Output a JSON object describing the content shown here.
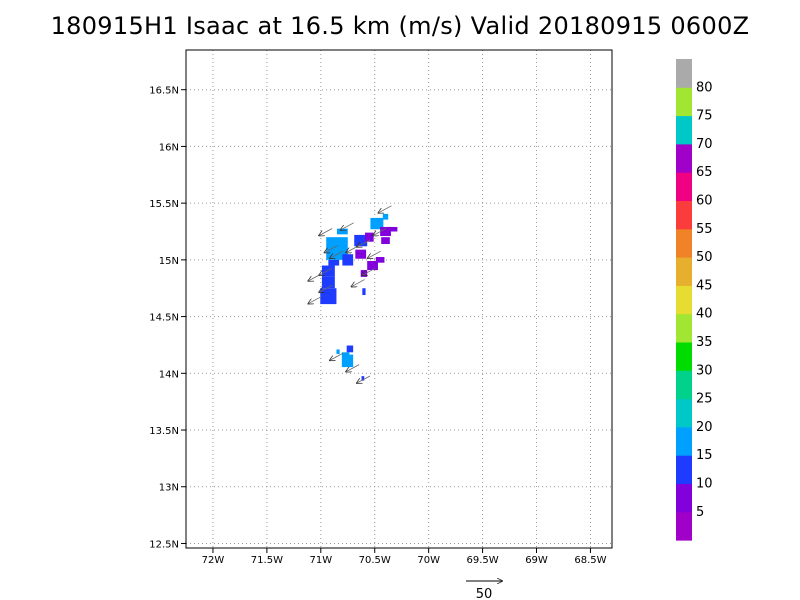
{
  "title": "180915H1 Isaac at 16.5 km (m/s) Valid 20180915 0600Z",
  "chart_data": {
    "type": "heatmap",
    "title": "180915H1 Isaac at 16.5 km (m/s) Valid 20180915 0600Z",
    "xlabel": "",
    "ylabel": "",
    "xlim": [
      -72.25,
      -68.3
    ],
    "ylim": [
      12.46,
      16.85
    ],
    "grid": true,
    "x_ticks": [
      {
        "value": -72,
        "label": "72W"
      },
      {
        "value": -71.5,
        "label": "71.5W"
      },
      {
        "value": -71,
        "label": "71W"
      },
      {
        "value": -70.5,
        "label": "70.5W"
      },
      {
        "value": -70,
        "label": "70W"
      },
      {
        "value": -69.5,
        "label": "69.5W"
      },
      {
        "value": -69,
        "label": "69W"
      },
      {
        "value": -68.5,
        "label": "68.5W"
      }
    ],
    "y_ticks": [
      {
        "value": 12.5,
        "label": "12.5N"
      },
      {
        "value": 13,
        "label": "13N"
      },
      {
        "value": 13.5,
        "label": "13.5N"
      },
      {
        "value": 14,
        "label": "14N"
      },
      {
        "value": 14.5,
        "label": "14.5N"
      },
      {
        "value": 15,
        "label": "15N"
      },
      {
        "value": 15.5,
        "label": "15.5N"
      },
      {
        "value": 16,
        "label": "16N"
      },
      {
        "value": 16.5,
        "label": "16.5N"
      }
    ],
    "colorbar": {
      "labels": [
        "5",
        "10",
        "15",
        "20",
        "25",
        "30",
        "35",
        "40",
        "45",
        "50",
        "55",
        "60",
        "65",
        "70",
        "75",
        "80"
      ],
      "colors": [
        "#a000c8",
        "#8200dc",
        "#1e3cff",
        "#00a0ff",
        "#00c8c8",
        "#00d28c",
        "#00dc00",
        "#a0e632",
        "#e6dc32",
        "#e6af2d",
        "#f08228",
        "#fa3c3c",
        "#f00082",
        "#a000c8",
        "#00c8c8",
        "#a0e632",
        "#aaaaaa"
      ]
    },
    "cells": [
      {
        "lon": -70.8,
        "lat": 15.25,
        "w": 0.1,
        "h": 0.05,
        "v": 18
      },
      {
        "lon": -70.85,
        "lat": 15.15,
        "w": 0.2,
        "h": 0.1,
        "v": 18
      },
      {
        "lon": -70.85,
        "lat": 15.05,
        "w": 0.2,
        "h": 0.1,
        "v": 18
      },
      {
        "lon": -70.88,
        "lat": 14.975,
        "w": 0.1,
        "h": 0.05,
        "v": 14
      },
      {
        "lon": -70.93,
        "lat": 14.9,
        "w": 0.12,
        "h": 0.1,
        "v": 14
      },
      {
        "lon": -70.93,
        "lat": 14.8,
        "w": 0.12,
        "h": 0.1,
        "v": 14
      },
      {
        "lon": -70.93,
        "lat": 14.68,
        "w": 0.15,
        "h": 0.14,
        "v": 14
      },
      {
        "lon": -70.75,
        "lat": 15.0,
        "w": 0.1,
        "h": 0.1,
        "v": 14
      },
      {
        "lon": -70.63,
        "lat": 15.17,
        "w": 0.12,
        "h": 0.1,
        "v": 14
      },
      {
        "lon": -70.63,
        "lat": 15.05,
        "w": 0.1,
        "h": 0.08,
        "v": 9
      },
      {
        "lon": -70.55,
        "lat": 15.2,
        "w": 0.08,
        "h": 0.08,
        "v": 9
      },
      {
        "lon": -70.52,
        "lat": 14.95,
        "w": 0.1,
        "h": 0.08,
        "v": 9
      },
      {
        "lon": -70.45,
        "lat": 15.0,
        "w": 0.08,
        "h": 0.05,
        "v": 9
      },
      {
        "lon": -70.6,
        "lat": 14.88,
        "w": 0.06,
        "h": 0.06,
        "v": 9
      },
      {
        "lon": -70.6,
        "lat": 14.72,
        "w": 0.03,
        "h": 0.06,
        "v": 14
      },
      {
        "lon": -70.48,
        "lat": 15.32,
        "w": 0.12,
        "h": 0.1,
        "v": 18
      },
      {
        "lon": -70.4,
        "lat": 15.38,
        "w": 0.05,
        "h": 0.05,
        "v": 18
      },
      {
        "lon": -70.4,
        "lat": 15.25,
        "w": 0.1,
        "h": 0.08,
        "v": 9
      },
      {
        "lon": -70.4,
        "lat": 15.17,
        "w": 0.08,
        "h": 0.06,
        "v": 9
      },
      {
        "lon": -70.33,
        "lat": 15.27,
        "w": 0.08,
        "h": 0.04,
        "v": 9
      },
      {
        "lon": -70.73,
        "lat": 14.215,
        "w": 0.06,
        "h": 0.06,
        "v": 14
      },
      {
        "lon": -70.77,
        "lat": 14.12,
        "w": 0.07,
        "h": 0.13,
        "v": 18
      },
      {
        "lon": -70.72,
        "lat": 14.11,
        "w": 0.04,
        "h": 0.11,
        "v": 18
      },
      {
        "lon": -70.84,
        "lat": 14.19,
        "w": 0.03,
        "h": 0.04,
        "v": 18
      },
      {
        "lon": -70.61,
        "lat": 13.955,
        "w": 0.025,
        "h": 0.04,
        "v": 14
      }
    ],
    "vectors": [
      {
        "lon": -70.95,
        "lat": 15.25
      },
      {
        "lon": -70.75,
        "lat": 15.3
      },
      {
        "lon": -70.85,
        "lat": 15.05
      },
      {
        "lon": -70.7,
        "lat": 15.1
      },
      {
        "lon": -70.95,
        "lat": 14.9
      },
      {
        "lon": -71.05,
        "lat": 14.85
      },
      {
        "lon": -70.95,
        "lat": 14.75
      },
      {
        "lon": -71.05,
        "lat": 14.65
      },
      {
        "lon": -70.6,
        "lat": 15.15
      },
      {
        "lon": -70.5,
        "lat": 15.05
      },
      {
        "lon": -70.45,
        "lat": 15.25
      },
      {
        "lon": -70.4,
        "lat": 15.45
      },
      {
        "lon": -70.55,
        "lat": 14.9
      },
      {
        "lon": -70.65,
        "lat": 14.8
      },
      {
        "lon": -70.85,
        "lat": 14.15
      },
      {
        "lon": -70.7,
        "lat": 14.05
      },
      {
        "lon": -70.6,
        "lat": 13.95
      },
      {
        "lon": -70.9,
        "lat": 15.1
      }
    ],
    "reference_vector": {
      "label": "50"
    }
  }
}
